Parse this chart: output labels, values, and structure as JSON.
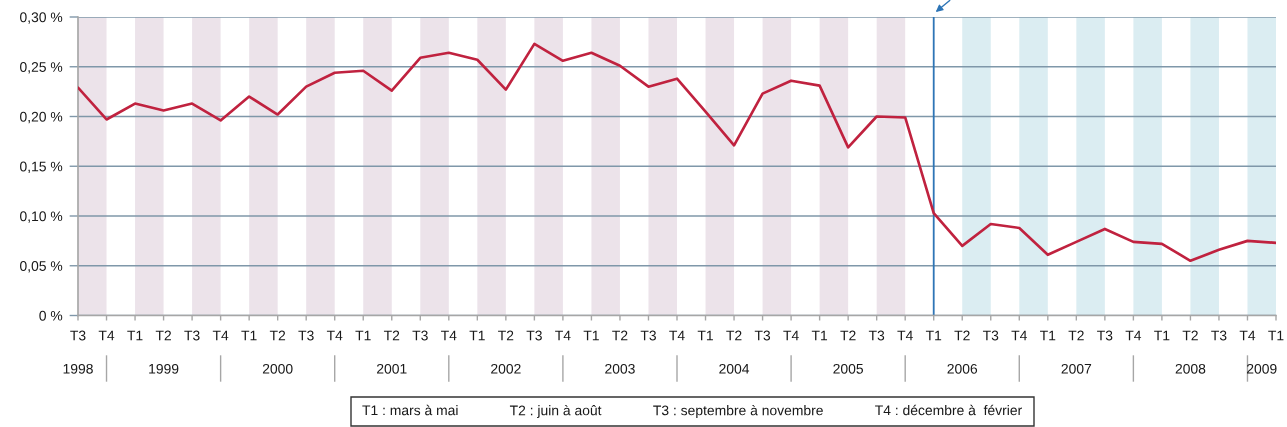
{
  "chart_data": {
    "type": "line",
    "x": [
      "1998-09",
      "1998-12",
      "1999-03",
      "1999-06",
      "1999-09",
      "1999-12",
      "2000-03",
      "2000-06",
      "2000-09",
      "2000-12",
      "2001-03",
      "2001-06",
      "2001-09",
      "2001-12",
      "2002-03",
      "2002-06",
      "2002-09",
      "2002-12",
      "2003-03",
      "2003-06",
      "2003-09",
      "2003-12",
      "2004-03",
      "2004-06",
      "2004-09",
      "2004-12",
      "2005-03",
      "2005-06",
      "2005-09",
      "2005-12",
      "2006-03",
      "2006-06",
      "2006-09",
      "2006-12",
      "2007-03",
      "2007-06",
      "2007-09",
      "2007-12",
      "2008-03",
      "2008-06",
      "2008-09",
      "2008-12",
      "2009-03"
    ],
    "values": [
      0.229,
      0.197,
      0.213,
      0.206,
      0.213,
      0.196,
      0.22,
      0.202,
      0.23,
      0.244,
      0.246,
      0.226,
      0.259,
      0.264,
      0.257,
      0.227,
      0.273,
      0.256,
      0.264,
      0.251,
      0.23,
      0.238,
      0.205,
      0.171,
      0.223,
      0.236,
      0.231,
      0.169,
      0.2,
      0.199,
      0.103,
      0.07,
      0.092,
      0.088,
      0.061,
      0.074,
      0.087,
      0.074,
      0.072,
      0.055,
      0.066,
      0.075,
      0.073
    ],
    "color": "#c0223f",
    "line_style": "solid",
    "xlim": [
      "1998-09",
      "2009-03"
    ],
    "xticks": [
      {
        "value": "1998-09",
        "label": "T3"
      },
      {
        "value": "1998-12",
        "label": "T4"
      },
      {
        "value": "1999-03",
        "label": "T1"
      },
      {
        "value": "1999-06",
        "label": "T2"
      },
      {
        "value": "1999-09",
        "label": "T3"
      },
      {
        "value": "1999-12",
        "label": "T4"
      },
      {
        "value": "2000-03",
        "label": "T1"
      },
      {
        "value": "2000-06",
        "label": "T2"
      },
      {
        "value": "2000-09",
        "label": "T3"
      },
      {
        "value": "2000-12",
        "label": "T4"
      },
      {
        "value": "2001-03",
        "label": "T1"
      },
      {
        "value": "2001-06",
        "label": "T2"
      },
      {
        "value": "2001-09",
        "label": "T3"
      },
      {
        "value": "2001-12",
        "label": "T4"
      },
      {
        "value": "2002-03",
        "label": "T1"
      },
      {
        "value": "2002-06",
        "label": "T2"
      },
      {
        "value": "2002-09",
        "label": "T3"
      },
      {
        "value": "2002-12",
        "label": "T4"
      },
      {
        "value": "2003-03",
        "label": "T1"
      },
      {
        "value": "2003-06",
        "label": "T2"
      },
      {
        "value": "2003-09",
        "label": "T3"
      },
      {
        "value": "2003-12",
        "label": "T4"
      },
      {
        "value": "2004-03",
        "label": "T1"
      },
      {
        "value": "2004-06",
        "label": "T2"
      },
      {
        "value": "2004-09",
        "label": "T3"
      },
      {
        "value": "2004-12",
        "label": "T4"
      },
      {
        "value": "2005-03",
        "label": "T1"
      },
      {
        "value": "2005-06",
        "label": "T2"
      },
      {
        "value": "2005-09",
        "label": "T3"
      },
      {
        "value": "2005-12",
        "label": "T4"
      },
      {
        "value": "2006-03",
        "label": "T1"
      },
      {
        "value": "2006-06",
        "label": "T2"
      },
      {
        "value": "2006-09",
        "label": "T3"
      },
      {
        "value": "2006-12",
        "label": "T4"
      },
      {
        "value": "2007-03",
        "label": "T1"
      },
      {
        "value": "2007-06",
        "label": "T2"
      },
      {
        "value": "2007-09",
        "label": "T3"
      },
      {
        "value": "2007-12",
        "label": "T4"
      },
      {
        "value": "2008-03",
        "label": "T1"
      },
      {
        "value": "2008-06",
        "label": "T2"
      },
      {
        "value": "2008-09",
        "label": "T3"
      },
      {
        "value": "2008-12",
        "label": "T4"
      },
      {
        "value": "2009-03",
        "label": "T1"
      }
    ],
    "ylim": [
      0,
      0.3
    ],
    "yticks": [
      {
        "value": 0,
        "label": "0 %"
      },
      {
        "value": 0.05,
        "label": "0,05 %"
      },
      {
        "value": 0.1,
        "label": "0,10 %"
      },
      {
        "value": 0.15,
        "label": "0,15 %"
      },
      {
        "value": 0.2,
        "label": "0,20 %"
      },
      {
        "value": 0.25,
        "label": "0,25 %"
      },
      {
        "value": 0.3,
        "label": "0,30 %"
      }
    ],
    "grid": "y",
    "bands": [
      {
        "axis": "x",
        "from": "1998-09",
        "to": "1998-12",
        "color": "#ece3ea"
      },
      {
        "axis": "x",
        "from": "1999-03",
        "to": "1999-06",
        "color": "#ece3ea"
      },
      {
        "axis": "x",
        "from": "1999-09",
        "to": "1999-12",
        "color": "#ece3ea"
      },
      {
        "axis": "x",
        "from": "2000-03",
        "to": "2000-06",
        "color": "#ece3ea"
      },
      {
        "axis": "x",
        "from": "2000-09",
        "to": "2000-12",
        "color": "#ece3ea"
      },
      {
        "axis": "x",
        "from": "2001-03",
        "to": "2001-06",
        "color": "#ece3ea"
      },
      {
        "axis": "x",
        "from": "2001-09",
        "to": "2001-12",
        "color": "#ece3ea"
      },
      {
        "axis": "x",
        "from": "2002-03",
        "to": "2002-06",
        "color": "#ece3ea"
      },
      {
        "axis": "x",
        "from": "2002-09",
        "to": "2002-12",
        "color": "#ece3ea"
      },
      {
        "axis": "x",
        "from": "2003-03",
        "to": "2003-06",
        "color": "#ece3ea"
      },
      {
        "axis": "x",
        "from": "2003-09",
        "to": "2003-12",
        "color": "#ece3ea"
      },
      {
        "axis": "x",
        "from": "2004-03",
        "to": "2004-06",
        "color": "#ece3ea"
      },
      {
        "axis": "x",
        "from": "2004-09",
        "to": "2004-12",
        "color": "#ece3ea"
      },
      {
        "axis": "x",
        "from": "2005-03",
        "to": "2005-06",
        "color": "#ece3ea"
      },
      {
        "axis": "x",
        "from": "2005-09",
        "to": "2005-12",
        "color": "#ece3ea"
      },
      {
        "axis": "x",
        "from": "2006-06",
        "to": "2006-09",
        "color": "#dbedf2"
      },
      {
        "axis": "x",
        "from": "2006-12",
        "to": "2007-03",
        "color": "#dbedf2"
      },
      {
        "axis": "x",
        "from": "2007-06",
        "to": "2007-09",
        "color": "#dbedf2"
      },
      {
        "axis": "x",
        "from": "2007-12",
        "to": "2008-03",
        "color": "#dbedf2"
      },
      {
        "axis": "x",
        "from": "2008-06",
        "to": "2008-09",
        "color": "#dbedf2"
      },
      {
        "axis": "x",
        "from": "2008-12",
        "to": "2009-03",
        "color": "#dbedf2"
      }
    ],
    "ref_lines": [
      {
        "axis": "x",
        "value": "2006-03",
        "color": "#2e75b6"
      }
    ],
    "annotations": [
      "1998",
      "1999",
      "2000",
      "2001",
      "2002",
      "2003",
      "2004",
      "2005",
      "2006",
      "2007",
      "2008",
      "2009",
      "T1 : mars à mai",
      "T2 : juin à août",
      "T3 : septembre à novembre",
      "T4 : décembre à  février"
    ]
  }
}
